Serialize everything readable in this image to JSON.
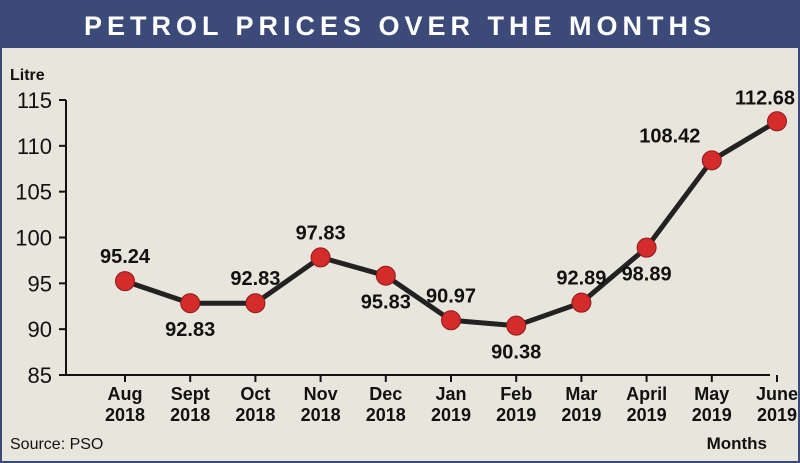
{
  "title": "PETROL PRICES OVER THE MONTHS",
  "source": "Source: PSO",
  "colors": {
    "title_bar": "#3b4a78",
    "background": "#e8e5dc",
    "line": "#222222",
    "marker": "#d42b2b"
  },
  "chart_data": {
    "type": "line",
    "title": "PETROL PRICES OVER THE MONTHS",
    "ylabel": "Litre",
    "xlabel": "Months",
    "ylim": [
      85,
      115
    ],
    "yticks": [
      85,
      90,
      95,
      100,
      105,
      110,
      115
    ],
    "grid": false,
    "categories": [
      [
        "Aug",
        "2018"
      ],
      [
        "Sept",
        "2018"
      ],
      [
        "Oct",
        "2018"
      ],
      [
        "Nov",
        "2018"
      ],
      [
        "Dec",
        "2018"
      ],
      [
        "Jan",
        "2019"
      ],
      [
        "Feb",
        "2019"
      ],
      [
        "Mar",
        "2019"
      ],
      [
        "April",
        "2019"
      ],
      [
        "May",
        "2019"
      ],
      [
        "June",
        "2019"
      ]
    ],
    "values": [
      95.24,
      92.83,
      92.83,
      97.83,
      95.83,
      90.97,
      90.38,
      92.89,
      98.89,
      108.42,
      112.68
    ],
    "data_labels": [
      "95.24",
      "92.83",
      "92.83",
      "97.83",
      "95.83",
      "90.97",
      "90.38",
      "92.89",
      "98.89",
      "108.42",
      "112.68"
    ],
    "label_positions": [
      "above",
      "below",
      "above",
      "above",
      "below",
      "above",
      "below",
      "above",
      "below",
      "above",
      "above"
    ]
  }
}
